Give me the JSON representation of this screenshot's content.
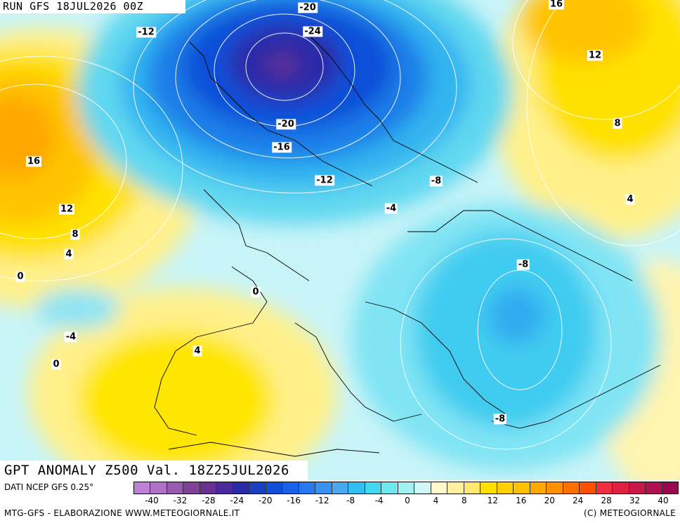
{
  "run_label": "RUN GFS 18JUL2026 00Z",
  "title": "GPT ANOMALY Z500 Val. 18Z25JUL2026",
  "source": "DATI NCEP GFS 0.25°",
  "credit": "MTG-GFS - ELABORAZIONE WWW.METEOGIORNALE.IT",
  "copyright": "(C) METEOGIORNALE",
  "contour_labels": [
    "-20",
    "-24",
    "-12",
    "-20",
    "-16",
    "-12",
    "-8",
    "-4",
    "-8",
    "-8",
    "16",
    "12",
    "8",
    "4",
    "16",
    "12",
    "8",
    "4",
    "0",
    "0",
    "-4",
    "0",
    "4"
  ],
  "legend": {
    "colors": [
      "#c080d8",
      "#b070c8",
      "#9858b0",
      "#804098",
      "#683090",
      "#4a2a9a",
      "#2a2aa8",
      "#1a3ec0",
      "#1050d8",
      "#1860e8",
      "#2878f0",
      "#3890f0",
      "#48a8f0",
      "#30c0f0",
      "#40d8f0",
      "#70e8f0",
      "#a0f0f0",
      "#d0f8f8",
      "#fff8c8",
      "#fff0a0",
      "#ffe870",
      "#ffe000",
      "#ffd000",
      "#ffc000",
      "#ffa800",
      "#ff9000",
      "#ff7000",
      "#ff5000",
      "#f03040",
      "#e02040",
      "#c81848",
      "#b01050",
      "#980850"
    ],
    "ticks": [
      "-40",
      "-32",
      "-28",
      "-24",
      "-20",
      "-16",
      "-12",
      "-8",
      "-4",
      "0",
      "4",
      "8",
      "12",
      "16",
      "20",
      "24",
      "28",
      "32",
      "40"
    ]
  }
}
